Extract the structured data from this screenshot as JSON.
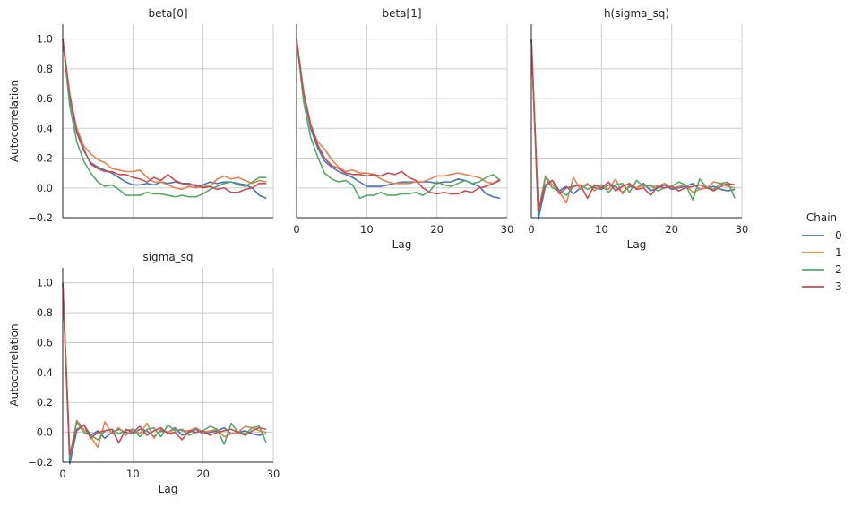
{
  "chart_data": [
    {
      "type": "line",
      "title": "beta[0]",
      "xlabel": "",
      "ylabel": "Autocorrelation",
      "xlim": [
        0,
        30
      ],
      "ylim": [
        -0.2,
        1.1
      ],
      "x": [
        0,
        1,
        2,
        3,
        4,
        5,
        6,
        7,
        8,
        9,
        10,
        11,
        12,
        13,
        14,
        15,
        16,
        17,
        18,
        19,
        20,
        21,
        22,
        23,
        24,
        25,
        26,
        27,
        28,
        29
      ],
      "series": [
        {
          "name": "0",
          "values": [
            1.0,
            0.6,
            0.37,
            0.25,
            0.17,
            0.14,
            0.12,
            0.1,
            0.07,
            0.04,
            0.02,
            0.02,
            0.03,
            0.02,
            0.04,
            0.03,
            0.04,
            0.03,
            0.03,
            0.01,
            0.02,
            0.04,
            0.03,
            0.04,
            0.04,
            0.03,
            0.02,
            0.0,
            -0.05,
            -0.07
          ]
        },
        {
          "name": "1",
          "values": [
            1.0,
            0.62,
            0.4,
            0.28,
            0.23,
            0.19,
            0.17,
            0.13,
            0.12,
            0.11,
            0.11,
            0.12,
            0.07,
            0.04,
            0.04,
            0.02,
            0.0,
            -0.01,
            0.01,
            0.0,
            0.01,
            0.01,
            0.06,
            0.08,
            0.06,
            0.07,
            0.05,
            0.03,
            0.05,
            0.04
          ]
        },
        {
          "name": "2",
          "values": [
            1.0,
            0.55,
            0.31,
            0.18,
            0.1,
            0.04,
            0.01,
            0.02,
            -0.01,
            -0.05,
            -0.05,
            -0.05,
            -0.03,
            -0.04,
            -0.04,
            -0.05,
            -0.06,
            -0.05,
            -0.06,
            -0.06,
            -0.04,
            -0.01,
            0.01,
            0.03,
            0.04,
            0.02,
            0.01,
            0.04,
            0.07,
            0.07
          ]
        },
        {
          "name": "3",
          "values": [
            1.0,
            0.63,
            0.38,
            0.26,
            0.16,
            0.13,
            0.11,
            0.11,
            0.09,
            0.09,
            0.07,
            0.06,
            0.04,
            0.07,
            0.05,
            0.09,
            0.05,
            0.03,
            0.02,
            0.02,
            0.0,
            0.01,
            -0.01,
            0.0,
            -0.03,
            -0.03,
            -0.01,
            0.0,
            0.03,
            0.03
          ]
        }
      ]
    },
    {
      "type": "line",
      "title": "beta[1]",
      "xlabel": "Lag",
      "ylabel": "",
      "xlim": [
        0,
        30
      ],
      "ylim": [
        -0.2,
        1.1
      ],
      "x": [
        0,
        1,
        2,
        3,
        4,
        5,
        6,
        7,
        8,
        9,
        10,
        11,
        12,
        13,
        14,
        15,
        16,
        17,
        18,
        19,
        20,
        21,
        22,
        23,
        24,
        25,
        26,
        27,
        28,
        29
      ],
      "series": [
        {
          "name": "0",
          "values": [
            1.0,
            0.63,
            0.4,
            0.27,
            0.18,
            0.14,
            0.11,
            0.09,
            0.07,
            0.04,
            0.01,
            0.01,
            0.01,
            0.02,
            0.03,
            0.04,
            0.04,
            0.04,
            0.04,
            0.04,
            0.03,
            0.04,
            0.04,
            0.06,
            0.05,
            0.03,
            0.01,
            -0.04,
            -0.06,
            -0.07
          ]
        },
        {
          "name": "1",
          "values": [
            1.0,
            0.65,
            0.42,
            0.31,
            0.26,
            0.19,
            0.14,
            0.11,
            0.12,
            0.1,
            0.1,
            0.09,
            0.06,
            0.04,
            0.03,
            0.03,
            0.03,
            0.04,
            0.04,
            0.06,
            0.08,
            0.08,
            0.09,
            0.1,
            0.09,
            0.08,
            0.07,
            0.04,
            0.03,
            0.06
          ]
        },
        {
          "name": "2",
          "values": [
            1.0,
            0.58,
            0.34,
            0.21,
            0.1,
            0.06,
            0.04,
            0.05,
            0.02,
            -0.07,
            -0.05,
            -0.05,
            -0.03,
            -0.05,
            -0.05,
            -0.04,
            -0.04,
            -0.03,
            -0.05,
            -0.02,
            0.04,
            0.02,
            0.01,
            0.03,
            0.05,
            0.03,
            0.04,
            0.07,
            0.09,
            0.05
          ]
        },
        {
          "name": "3",
          "values": [
            1.0,
            0.64,
            0.43,
            0.29,
            0.2,
            0.15,
            0.13,
            0.1,
            0.09,
            0.09,
            0.08,
            0.09,
            0.08,
            0.1,
            0.09,
            0.11,
            0.07,
            0.05,
            0.0,
            -0.03,
            -0.04,
            -0.03,
            -0.04,
            -0.04,
            -0.02,
            -0.03,
            0.0,
            0.01,
            0.03,
            0.05
          ]
        }
      ]
    },
    {
      "type": "line",
      "title": "h(sigma_sq)",
      "xlabel": "Lag",
      "ylabel": "",
      "xlim": [
        0,
        30
      ],
      "ylim": [
        -0.2,
        1.1
      ],
      "x": [
        0,
        1,
        2,
        3,
        4,
        5,
        6,
        7,
        8,
        9,
        10,
        11,
        12,
        13,
        14,
        15,
        16,
        17,
        18,
        19,
        20,
        21,
        22,
        23,
        24,
        25,
        26,
        27,
        28,
        29
      ],
      "series": [
        {
          "name": "0",
          "values": [
            1.0,
            -0.21,
            0.01,
            0.05,
            -0.02,
            0.01,
            -0.04,
            0.0,
            0.02,
            0.0,
            -0.01,
            0.02,
            0.01,
            -0.03,
            0.01,
            0.0,
            0.03,
            -0.02,
            0.0,
            0.02,
            -0.01,
            0.0,
            0.01,
            0.03,
            -0.01,
            0.0,
            0.01,
            -0.01,
            -0.02,
            -0.01
          ]
        },
        {
          "name": "1",
          "values": [
            1.0,
            -0.16,
            0.08,
            0.02,
            -0.03,
            -0.1,
            0.07,
            -0.01,
            0.03,
            -0.02,
            0.02,
            -0.01,
            0.06,
            -0.04,
            0.02,
            0.0,
            0.02,
            0.01,
            0.01,
            0.03,
            0.0,
            0.01,
            0.02,
            -0.03,
            -0.01,
            0.0,
            0.04,
            0.03,
            0.01,
            0.0
          ]
        },
        {
          "name": "2",
          "values": [
            1.0,
            -0.17,
            0.07,
            0.0,
            -0.02,
            -0.05,
            0.01,
            0.02,
            -0.01,
            0.01,
            0.02,
            -0.03,
            0.02,
            0.03,
            -0.03,
            0.05,
            0.01,
            0.02,
            -0.02,
            0.0,
            0.01,
            0.04,
            0.02,
            -0.08,
            0.06,
            0.0,
            -0.01,
            0.03,
            0.04,
            -0.07
          ]
        },
        {
          "name": "3",
          "values": [
            1.0,
            -0.15,
            0.02,
            0.05,
            -0.04,
            0.0,
            0.01,
            0.02,
            -0.07,
            0.02,
            0.0,
            0.04,
            -0.02,
            0.01,
            0.03,
            -0.01,
            0.0,
            -0.05,
            0.01,
            0.0,
            0.01,
            -0.02,
            0.0,
            0.01,
            0.02,
            0.0,
            -0.02,
            0.01,
            0.03,
            0.02
          ]
        }
      ]
    },
    {
      "type": "line",
      "title": "sigma_sq",
      "xlabel": "Lag",
      "ylabel": "Autocorrelation",
      "xlim": [
        0,
        30
      ],
      "ylim": [
        -0.2,
        1.1
      ],
      "x": [
        0,
        1,
        2,
        3,
        4,
        5,
        6,
        7,
        8,
        9,
        10,
        11,
        12,
        13,
        14,
        15,
        16,
        17,
        18,
        19,
        20,
        21,
        22,
        23,
        24,
        25,
        26,
        27,
        28,
        29
      ],
      "series": [
        {
          "name": "0",
          "values": [
            1.0,
            -0.21,
            0.01,
            0.05,
            -0.02,
            0.01,
            -0.04,
            0.0,
            0.02,
            0.0,
            -0.01,
            0.02,
            0.01,
            -0.03,
            0.01,
            0.0,
            0.03,
            -0.02,
            0.0,
            0.02,
            -0.01,
            0.0,
            0.01,
            0.03,
            -0.01,
            0.0,
            0.01,
            -0.01,
            -0.02,
            -0.01
          ]
        },
        {
          "name": "1",
          "values": [
            1.0,
            -0.16,
            0.08,
            0.02,
            -0.03,
            -0.1,
            0.07,
            -0.01,
            0.03,
            -0.02,
            0.02,
            -0.01,
            0.06,
            -0.04,
            0.02,
            0.0,
            0.02,
            0.01,
            0.01,
            0.03,
            0.0,
            0.01,
            0.02,
            -0.03,
            -0.01,
            0.0,
            0.04,
            0.03,
            0.01,
            0.0
          ]
        },
        {
          "name": "2",
          "values": [
            1.0,
            -0.17,
            0.07,
            0.0,
            -0.02,
            -0.05,
            0.01,
            0.02,
            -0.01,
            0.01,
            0.02,
            -0.03,
            0.02,
            0.03,
            -0.03,
            0.05,
            0.01,
            0.02,
            -0.02,
            0.0,
            0.01,
            0.04,
            0.02,
            -0.08,
            0.06,
            0.0,
            -0.01,
            0.03,
            0.04,
            -0.07
          ]
        },
        {
          "name": "3",
          "values": [
            1.0,
            -0.15,
            0.02,
            0.05,
            -0.04,
            0.0,
            0.01,
            0.02,
            -0.07,
            0.02,
            0.0,
            0.04,
            -0.02,
            0.01,
            0.03,
            -0.01,
            0.0,
            -0.05,
            0.01,
            0.0,
            0.01,
            -0.02,
            0.0,
            0.01,
            0.02,
            0.0,
            -0.02,
            0.01,
            0.03,
            0.02
          ]
        }
      ]
    }
  ],
  "axes": {
    "y_ticks": [
      "−0.2",
      "0.0",
      "0.2",
      "0.4",
      "0.6",
      "0.8",
      "1.0"
    ],
    "y_tick_values": [
      -0.2,
      0.0,
      0.2,
      0.4,
      0.6,
      0.8,
      1.0
    ],
    "x_ticks": [
      "0",
      "10",
      "20",
      "30"
    ],
    "x_tick_values": [
      0,
      10,
      20,
      30
    ]
  },
  "legend": {
    "title": "Chain",
    "entries": [
      "0",
      "1",
      "2",
      "3"
    ],
    "placement": "right"
  },
  "colors": {
    "series": [
      "#4c72b0",
      "#dd8452",
      "#55a868",
      "#c44e52"
    ],
    "grid": "#cccccc",
    "axis": "#262626"
  }
}
